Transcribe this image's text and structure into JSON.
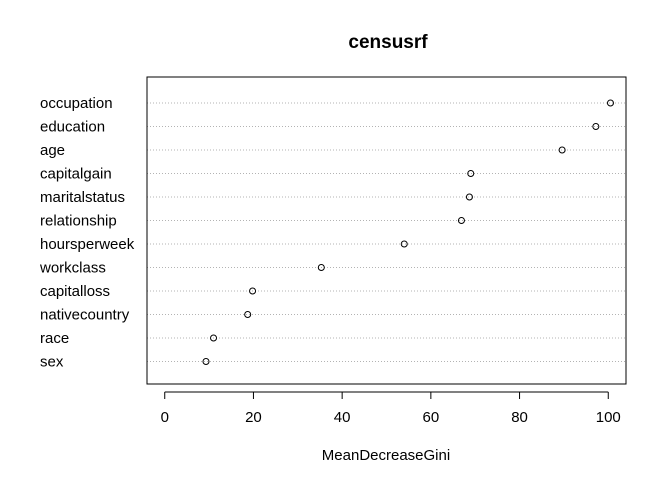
{
  "chart_data": {
    "type": "scatter",
    "title": "censusrf",
    "xlabel": "MeanDecreaseGini",
    "ylabel": "",
    "xlim": [
      -4,
      104
    ],
    "xticks": [
      "0",
      "20",
      "40",
      "60",
      "80",
      "100"
    ],
    "grid": "horizontal dotted",
    "categories": [
      "occupation",
      "education",
      "age",
      "capitalgain",
      "maritalstatus",
      "relationship",
      "hoursperweek",
      "workclass",
      "capitalloss",
      "nativecountry",
      "race",
      "sex"
    ],
    "values": [
      100.5,
      97.2,
      89.6,
      69.0,
      68.7,
      66.9,
      54.0,
      35.3,
      19.8,
      18.7,
      11.0,
      9.3
    ]
  }
}
